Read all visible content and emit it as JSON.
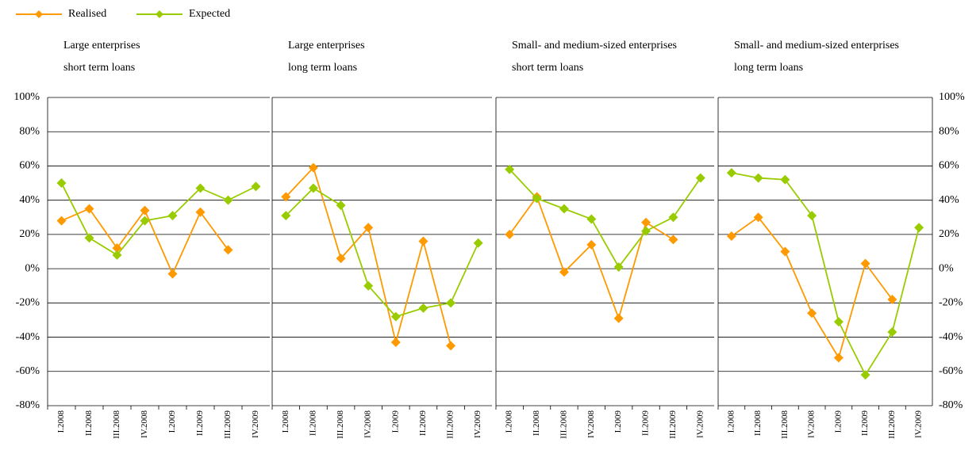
{
  "chart_data": [
    {
      "type": "line",
      "title": [
        "Large enterprises",
        "short term loans"
      ],
      "categories": [
        "I.2008",
        "II.2008",
        "III.2008",
        "IV.2008",
        "I.2009",
        "II.2009",
        "III.2009",
        "IV.2009"
      ],
      "series": [
        {
          "name": "Realised",
          "color": "#ff9900",
          "values": [
            28,
            35,
            12,
            34,
            -3,
            33,
            11,
            null
          ]
        },
        {
          "name": "Expected",
          "color": "#99cc00",
          "values": [
            50,
            18,
            8,
            28,
            31,
            47,
            40,
            48
          ]
        }
      ],
      "ylim": [
        -80,
        100
      ],
      "yticks": [
        {
          "value": -80,
          "label": "-80%"
        },
        {
          "value": -60,
          "label": "-60%"
        },
        {
          "value": -40,
          "label": "-40%"
        },
        {
          "value": -20,
          "label": "-20%"
        },
        {
          "value": 0,
          "label": "0%"
        },
        {
          "value": 20,
          "label": "20%"
        },
        {
          "value": 40,
          "label": "40%"
        },
        {
          "value": 60,
          "label": "60%"
        },
        {
          "value": 80,
          "label": "80%"
        },
        {
          "value": 100,
          "label": "100%"
        }
      ],
      "grid": true
    },
    {
      "type": "line",
      "title": [
        "Large enterprises",
        "long term loans"
      ],
      "categories": [
        "I.2008",
        "II.2008",
        "III.2008",
        "IV.2008",
        "I.2009",
        "II.2009",
        "III.2009",
        "IV.2009"
      ],
      "series": [
        {
          "name": "Realised",
          "color": "#ff9900",
          "values": [
            42,
            59,
            6,
            24,
            -43,
            16,
            -45,
            null
          ]
        },
        {
          "name": "Expected",
          "color": "#99cc00",
          "values": [
            31,
            47,
            37,
            -10,
            -28,
            -23,
            -20,
            15
          ]
        }
      ],
      "ylim": [
        -80,
        100
      ],
      "yticks": [
        {
          "value": -80,
          "label": "-80%"
        },
        {
          "value": -60,
          "label": "-60%"
        },
        {
          "value": -40,
          "label": "-40%"
        },
        {
          "value": -20,
          "label": "-20%"
        },
        {
          "value": 0,
          "label": "0%"
        },
        {
          "value": 20,
          "label": "20%"
        },
        {
          "value": 40,
          "label": "40%"
        },
        {
          "value": 60,
          "label": "60%"
        },
        {
          "value": 80,
          "label": "80%"
        },
        {
          "value": 100,
          "label": "100%"
        }
      ],
      "grid": true
    },
    {
      "type": "line",
      "title": [
        "Small- and medium-sized enterprises",
        "short term loans"
      ],
      "categories": [
        "I.2008",
        "II.2008",
        "III.2008",
        "IV.2008",
        "I.2009",
        "II.2009",
        "III.2009",
        "IV.2009"
      ],
      "series": [
        {
          "name": "Realised",
          "color": "#ff9900",
          "values": [
            20,
            42,
            -2,
            14,
            -29,
            27,
            17,
            null
          ]
        },
        {
          "name": "Expected",
          "color": "#99cc00",
          "values": [
            58,
            41,
            35,
            29,
            1,
            22,
            30,
            53
          ]
        }
      ],
      "ylim": [
        -80,
        100
      ],
      "yticks": [
        {
          "value": -80,
          "label": "-80%"
        },
        {
          "value": -60,
          "label": "-60%"
        },
        {
          "value": -40,
          "label": "-40%"
        },
        {
          "value": -20,
          "label": "-20%"
        },
        {
          "value": 0,
          "label": "0%"
        },
        {
          "value": 20,
          "label": "20%"
        },
        {
          "value": 40,
          "label": "40%"
        },
        {
          "value": 60,
          "label": "60%"
        },
        {
          "value": 80,
          "label": "80%"
        },
        {
          "value": 100,
          "label": "100%"
        }
      ],
      "grid": true
    },
    {
      "type": "line",
      "title": [
        "Small- and medium-sized enterprises",
        "long term loans"
      ],
      "categories": [
        "I.2008",
        "II.2008",
        "III.2008",
        "IV.2008",
        "I.2009",
        "II.2009",
        "III.2009",
        "IV.2009"
      ],
      "series": [
        {
          "name": "Realised",
          "color": "#ff9900",
          "values": [
            19,
            30,
            10,
            -26,
            -52,
            3,
            -18,
            null
          ]
        },
        {
          "name": "Expected",
          "color": "#99cc00",
          "values": [
            56,
            53,
            52,
            31,
            -31,
            -62,
            -37,
            24
          ]
        }
      ],
      "ylim": [
        -80,
        100
      ],
      "yticks": [
        {
          "value": -80,
          "label": "-80%"
        },
        {
          "value": -60,
          "label": "-60%"
        },
        {
          "value": -40,
          "label": "-40%"
        },
        {
          "value": -20,
          "label": "-20%"
        },
        {
          "value": 0,
          "label": "0%"
        },
        {
          "value": 20,
          "label": "20%"
        },
        {
          "value": 40,
          "label": "40%"
        },
        {
          "value": 60,
          "label": "60%"
        },
        {
          "value": 80,
          "label": "80%"
        },
        {
          "value": 100,
          "label": "100%"
        }
      ],
      "grid": true
    }
  ]
}
